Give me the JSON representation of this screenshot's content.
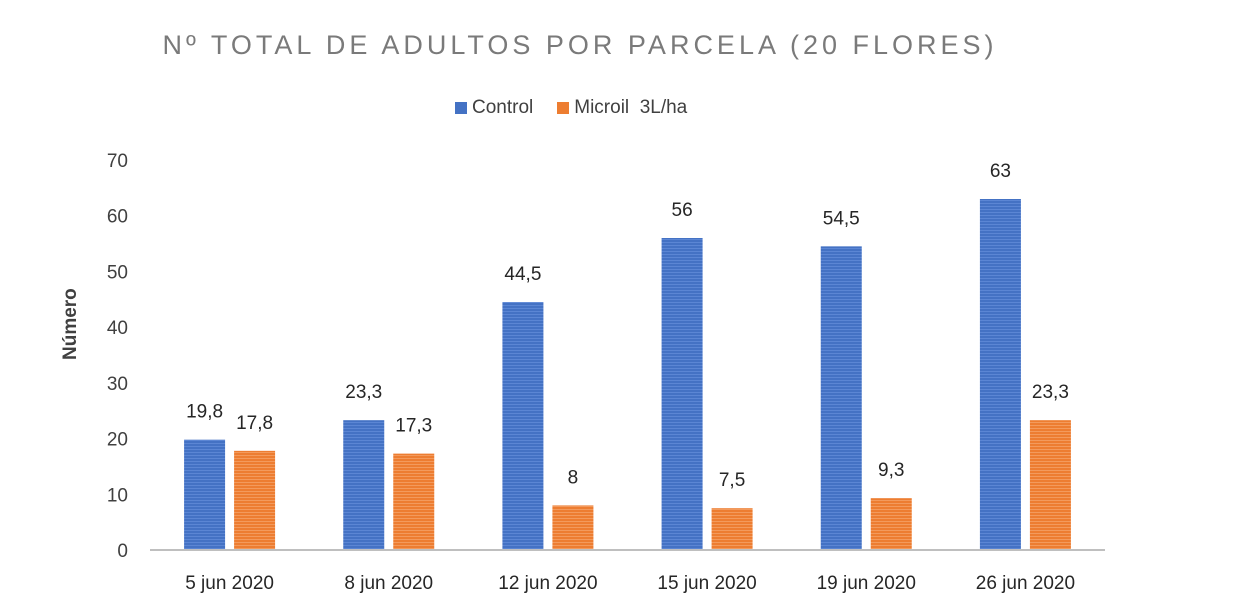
{
  "chart_data": {
    "type": "bar",
    "title": "Nº TOTAL DE ADULTOS POR PARCELA (20 FLORES)",
    "xlabel": "",
    "ylabel": "Número",
    "categories": [
      "5 jun 2020",
      "8 jun 2020",
      "12 jun 2020",
      "15 jun 2020",
      "19 jun 2020",
      "26 jun 2020"
    ],
    "series": [
      {
        "name": "Control",
        "values": [
          19.8,
          23.3,
          44.5,
          56,
          54.5,
          63
        ],
        "labels": [
          "19,8",
          "23,3",
          "44,5",
          "56",
          "54,5",
          "63"
        ],
        "color": "#4472c4"
      },
      {
        "name": "Microil  3L/ha",
        "values": [
          17.8,
          17.3,
          8,
          7.5,
          9.3,
          23.3
        ],
        "labels": [
          "17,8",
          "17,3",
          "8",
          "7,5",
          "9,3",
          "23,3"
        ],
        "color": "#ed7d31"
      }
    ],
    "ylim": [
      0,
      70
    ],
    "yticks": [
      0,
      10,
      20,
      30,
      40,
      50,
      60,
      70
    ],
    "grid": false,
    "legend": "top"
  }
}
